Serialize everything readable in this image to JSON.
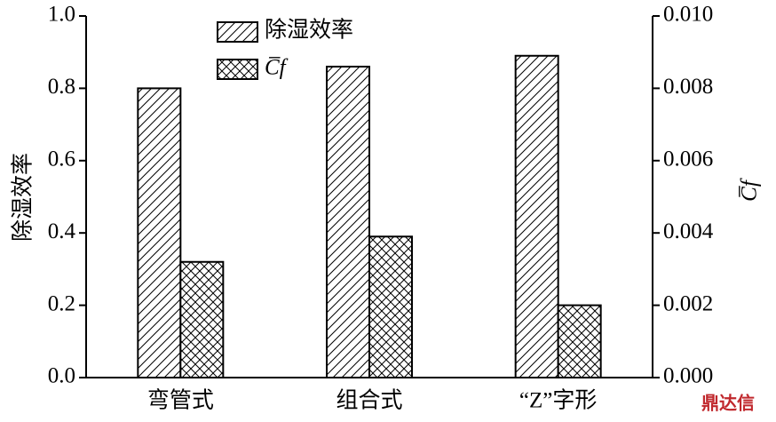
{
  "chart_data": {
    "type": "bar",
    "categories": [
      "弯管式",
      "组合式",
      "“Z”字形"
    ],
    "series": [
      {
        "name": "除湿效率",
        "color": "#000000",
        "hatch": "diagonal",
        "values": [
          0.8,
          0.86,
          0.89
        ]
      },
      {
        "name": "C̅f",
        "color": "#000000",
        "hatch": "cross",
        "axis": "y2",
        "values": [
          0.0032,
          0.0039,
          0.002
        ]
      }
    ],
    "ylabel": "除湿效率",
    "y2label": "C̅f",
    "ylim": [
      0,
      1
    ],
    "yticks": [
      {
        "value": 0,
        "label": "0.0"
      },
      0.2,
      0.4,
      0.6,
      0.8,
      {
        "value": 1,
        "label": "1.0"
      }
    ],
    "y2lim": [
      0,
      0.01
    ],
    "y2ticks": [
      {
        "value": 0,
        "label": "0.000"
      },
      0.002,
      0.004,
      0.006,
      0.008,
      {
        "value": 0.01,
        "label": "0.010"
      }
    ],
    "legend": "upper left",
    "watermark": "鼎达信"
  }
}
